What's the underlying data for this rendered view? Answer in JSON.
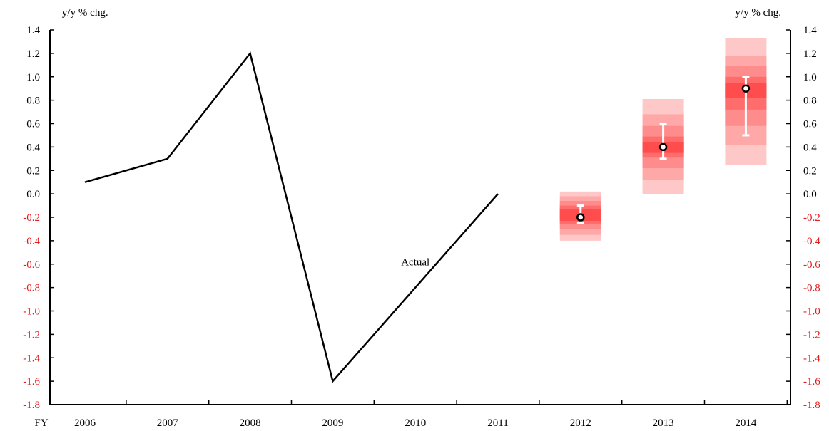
{
  "chart_data": {
    "type": "line",
    "x_prefix_label": "FY",
    "y_unit_left": "y/y % chg.",
    "y_unit_right": "y/y % chg.",
    "ylim": [
      -1.8,
      1.4
    ],
    "y_ticks": [
      "1.4",
      "1.2",
      "1.0",
      "0.8",
      "0.6",
      "0.4",
      "0.2",
      "0.0",
      "-0.2",
      "-0.4",
      "-0.6",
      "-0.8",
      "-1.0",
      "-1.2",
      "-1.4",
      "-1.6",
      "-1.8"
    ],
    "categories": [
      "2006",
      "2007",
      "2008",
      "2009",
      "2010",
      "2011",
      "2012",
      "2013",
      "2014"
    ],
    "series": [
      {
        "name": "Actual",
        "x": [
          "2006",
          "2007",
          "2008",
          "2009",
          "2011"
        ],
        "values": [
          0.1,
          0.3,
          1.2,
          -1.6,
          0.0
        ]
      }
    ],
    "forecast": [
      {
        "x": "2012",
        "median": -0.2,
        "range_low": -0.25,
        "range_high": -0.1,
        "bands": [
          [
            -0.4,
            0.02
          ],
          [
            -0.35,
            -0.02
          ],
          [
            -0.3,
            -0.06
          ],
          [
            -0.26,
            -0.1
          ],
          [
            -0.23,
            -0.13
          ]
        ]
      },
      {
        "x": "2013",
        "median": 0.4,
        "range_low": 0.3,
        "range_high": 0.6,
        "bands": [
          [
            0.0,
            0.81
          ],
          [
            0.12,
            0.68
          ],
          [
            0.22,
            0.58
          ],
          [
            0.31,
            0.49
          ],
          [
            0.35,
            0.44
          ]
        ]
      },
      {
        "x": "2014",
        "median": 0.9,
        "range_low": 0.5,
        "range_high": 1.0,
        "bands": [
          [
            0.25,
            1.33
          ],
          [
            0.42,
            1.18
          ],
          [
            0.58,
            1.09
          ],
          [
            0.72,
            1.0
          ],
          [
            0.82,
            0.95
          ]
        ]
      }
    ],
    "annotations": [
      {
        "text": "Actual",
        "x": 2010,
        "y": -0.58
      }
    ],
    "colors": {
      "line": "#000000",
      "negative_tick": "#e41a1c",
      "positive_tick": "#000000",
      "band_shades": [
        "#ffc8c8",
        "#ffa8a8",
        "#ff8c8c",
        "#ff6c6c",
        "#ff4c4c"
      ],
      "range_bar": "#ffffff",
      "median_marker_fill": "#ffffff",
      "median_marker_stroke": "#000000"
    },
    "grid": false,
    "legend": "none"
  }
}
